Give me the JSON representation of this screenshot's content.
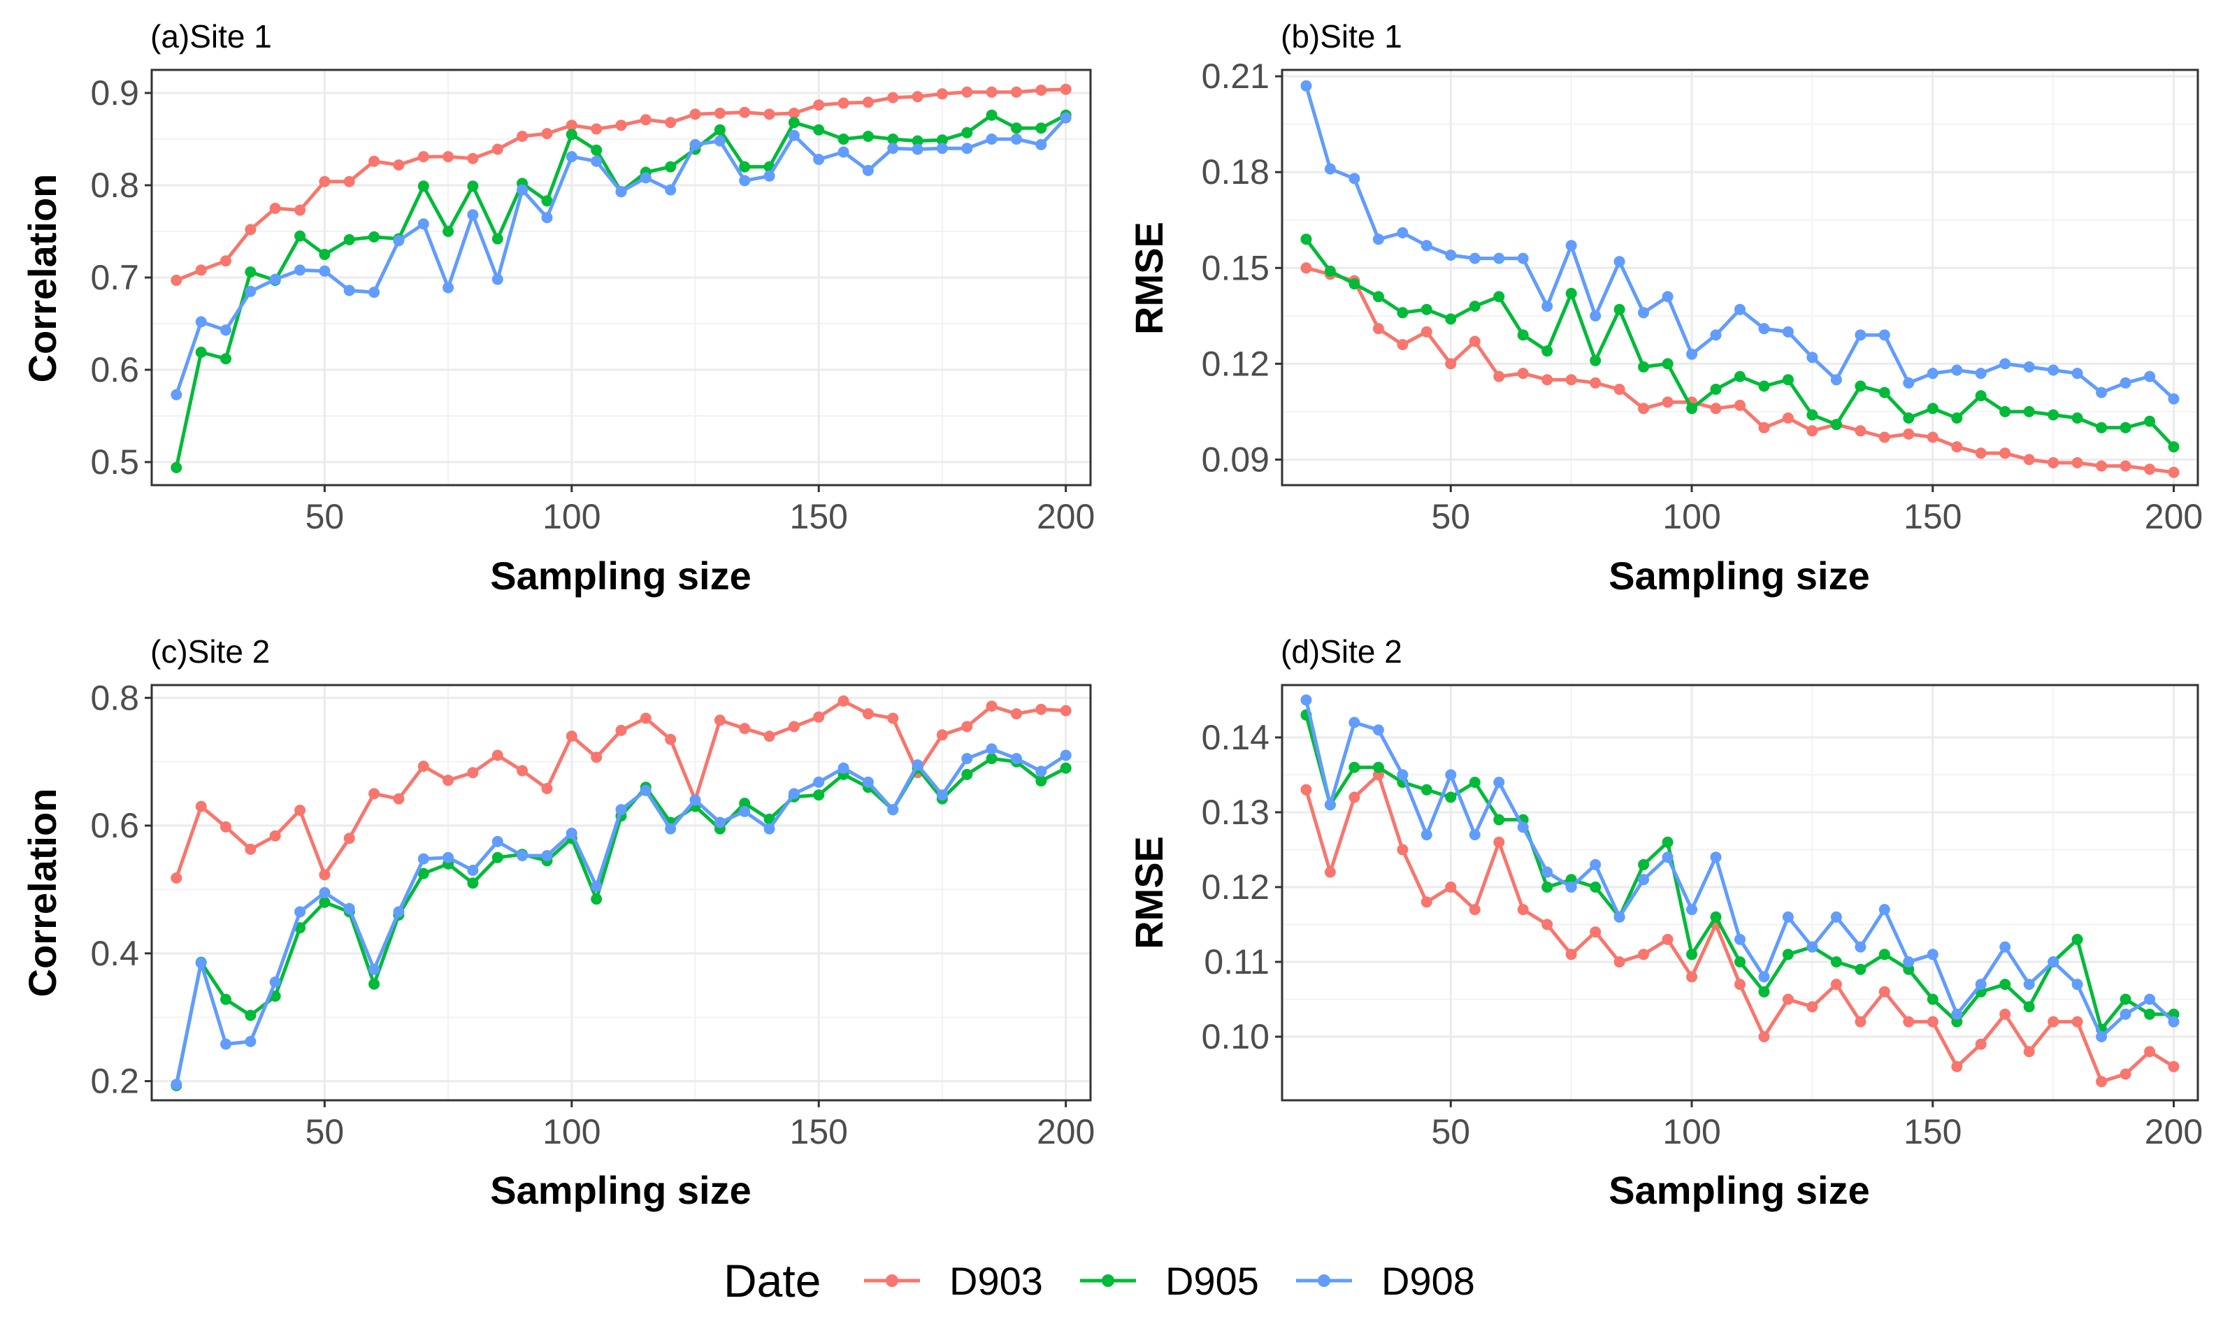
{
  "colors": {
    "D903": "#F8766D",
    "D905": "#00BA38",
    "D908": "#619CFF"
  },
  "legend": {
    "title": "Date",
    "entries": [
      "D903",
      "D905",
      "D908"
    ]
  },
  "chart_data": [
    {
      "type": "line",
      "title": "(a)Site 1",
      "xlabel": "Sampling size",
      "ylabel": "Correlation",
      "xlim": [
        15,
        205
      ],
      "ylim": [
        0.475,
        0.925
      ],
      "xticks": [
        50,
        100,
        150,
        200
      ],
      "yticks": [
        0.5,
        0.6,
        0.7,
        0.8,
        0.9
      ],
      "ytick_labels": [
        "0.5",
        "0.6",
        "0.7",
        "0.8",
        "0.9"
      ],
      "x": [
        20,
        25,
        30,
        35,
        40,
        45,
        50,
        55,
        60,
        65,
        70,
        75,
        80,
        85,
        90,
        95,
        100,
        105,
        110,
        115,
        120,
        125,
        130,
        135,
        140,
        145,
        150,
        155,
        160,
        165,
        170,
        175,
        180,
        185,
        190,
        195,
        200
      ],
      "series": [
        {
          "name": "D903",
          "values": [
            0.697,
            0.708,
            0.718,
            0.752,
            0.775,
            0.773,
            0.804,
            0.804,
            0.826,
            0.822,
            0.831,
            0.831,
            0.829,
            0.839,
            0.853,
            0.856,
            0.865,
            0.861,
            0.865,
            0.871,
            0.868,
            0.877,
            0.878,
            0.879,
            0.877,
            0.878,
            0.887,
            0.889,
            0.89,
            0.895,
            0.896,
            0.899,
            0.901,
            0.901,
            0.901,
            0.903,
            0.904
          ]
        },
        {
          "name": "D905",
          "values": [
            0.494,
            0.619,
            0.612,
            0.706,
            0.697,
            0.745,
            0.725,
            0.741,
            0.744,
            0.742,
            0.799,
            0.75,
            0.799,
            0.742,
            0.802,
            0.783,
            0.855,
            0.838,
            0.793,
            0.814,
            0.82,
            0.839,
            0.86,
            0.82,
            0.82,
            0.868,
            0.86,
            0.85,
            0.853,
            0.85,
            0.848,
            0.849,
            0.857,
            0.876,
            0.862,
            0.862,
            0.876
          ]
        },
        {
          "name": "D908",
          "values": [
            0.573,
            0.652,
            0.643,
            0.685,
            0.698,
            0.708,
            0.707,
            0.686,
            0.684,
            0.74,
            0.758,
            0.689,
            0.768,
            0.698,
            0.795,
            0.765,
            0.831,
            0.826,
            0.793,
            0.808,
            0.795,
            0.844,
            0.848,
            0.805,
            0.81,
            0.854,
            0.828,
            0.836,
            0.816,
            0.84,
            0.839,
            0.84,
            0.84,
            0.85,
            0.85,
            0.844,
            0.873
          ]
        }
      ]
    },
    {
      "type": "line",
      "title": "(b)Site 1",
      "xlabel": "Sampling size",
      "ylabel": "RMSE",
      "xlim": [
        15,
        205
      ],
      "ylim": [
        0.082,
        0.212
      ],
      "xticks": [
        50,
        100,
        150,
        200
      ],
      "yticks": [
        0.09,
        0.12,
        0.15,
        0.18,
        0.21
      ],
      "ytick_labels": [
        "0.09",
        "0.12",
        "0.15",
        "0.18",
        "0.21"
      ],
      "x": [
        20,
        25,
        30,
        35,
        40,
        45,
        50,
        55,
        60,
        65,
        70,
        75,
        80,
        85,
        90,
        95,
        100,
        105,
        110,
        115,
        120,
        125,
        130,
        135,
        140,
        145,
        150,
        155,
        160,
        165,
        170,
        175,
        180,
        185,
        190,
        195,
        200
      ],
      "series": [
        {
          "name": "D903",
          "values": [
            0.15,
            0.148,
            0.146,
            0.131,
            0.126,
            0.13,
            0.12,
            0.127,
            0.116,
            0.117,
            0.115,
            0.115,
            0.114,
            0.112,
            0.106,
            0.108,
            0.108,
            0.106,
            0.107,
            0.1,
            0.103,
            0.099,
            0.101,
            0.099,
            0.097,
            0.098,
            0.097,
            0.094,
            0.092,
            0.092,
            0.09,
            0.089,
            0.089,
            0.088,
            0.088,
            0.087,
            0.086
          ]
        },
        {
          "name": "D905",
          "values": [
            0.159,
            0.149,
            0.145,
            0.141,
            0.136,
            0.137,
            0.134,
            0.138,
            0.141,
            0.129,
            0.124,
            0.142,
            0.121,
            0.137,
            0.119,
            0.12,
            0.106,
            0.112,
            0.116,
            0.113,
            0.115,
            0.104,
            0.101,
            0.113,
            0.111,
            0.103,
            0.106,
            0.103,
            0.11,
            0.105,
            0.105,
            0.104,
            0.103,
            0.1,
            0.1,
            0.102,
            0.094
          ]
        },
        {
          "name": "D908",
          "values": [
            0.207,
            0.181,
            0.178,
            0.159,
            0.161,
            0.157,
            0.154,
            0.153,
            0.153,
            0.153,
            0.138,
            0.157,
            0.135,
            0.152,
            0.136,
            0.141,
            0.123,
            0.129,
            0.137,
            0.131,
            0.13,
            0.122,
            0.115,
            0.129,
            0.129,
            0.114,
            0.117,
            0.118,
            0.117,
            0.12,
            0.119,
            0.118,
            0.117,
            0.111,
            0.114,
            0.116,
            0.109
          ]
        }
      ]
    },
    {
      "type": "line",
      "title": "(c)Site 2",
      "xlabel": "Sampling size",
      "ylabel": "Correlation",
      "xlim": [
        15,
        205
      ],
      "ylim": [
        0.17,
        0.82
      ],
      "xticks": [
        50,
        100,
        150,
        200
      ],
      "yticks": [
        0.2,
        0.4,
        0.6,
        0.8
      ],
      "ytick_labels": [
        "0.2",
        "0.4",
        "0.6",
        "0.8"
      ],
      "x": [
        20,
        25,
        30,
        35,
        40,
        45,
        50,
        55,
        60,
        65,
        70,
        75,
        80,
        85,
        90,
        95,
        100,
        105,
        110,
        115,
        120,
        125,
        130,
        135,
        140,
        145,
        150,
        155,
        160,
        165,
        170,
        175,
        180,
        185,
        190,
        195,
        200
      ],
      "series": [
        {
          "name": "D903",
          "values": [
            0.518,
            0.63,
            0.598,
            0.563,
            0.584,
            0.624,
            0.523,
            0.58,
            0.65,
            0.642,
            0.693,
            0.671,
            0.683,
            0.71,
            0.686,
            0.658,
            0.74,
            0.707,
            0.749,
            0.768,
            0.735,
            0.64,
            0.765,
            0.752,
            0.74,
            0.755,
            0.77,
            0.795,
            0.775,
            0.768,
            0.683,
            0.742,
            0.755,
            0.787,
            0.775,
            0.782,
            0.78
          ]
        },
        {
          "name": "D905",
          "values": [
            0.193,
            0.386,
            0.328,
            0.303,
            0.333,
            0.44,
            0.48,
            0.465,
            0.352,
            0.46,
            0.525,
            0.54,
            0.51,
            0.55,
            0.555,
            0.545,
            0.58,
            0.485,
            0.615,
            0.66,
            0.605,
            0.63,
            0.595,
            0.635,
            0.61,
            0.645,
            0.648,
            0.68,
            0.66,
            0.625,
            0.69,
            0.642,
            0.68,
            0.705,
            0.7,
            0.67,
            0.69
          ]
        },
        {
          "name": "D908",
          "values": [
            0.195,
            0.385,
            0.258,
            0.262,
            0.355,
            0.465,
            0.495,
            0.47,
            0.375,
            0.465,
            0.548,
            0.55,
            0.53,
            0.575,
            0.553,
            0.553,
            0.588,
            0.505,
            0.625,
            0.655,
            0.595,
            0.64,
            0.605,
            0.622,
            0.595,
            0.65,
            0.668,
            0.69,
            0.668,
            0.625,
            0.695,
            0.648,
            0.705,
            0.72,
            0.705,
            0.685,
            0.71
          ]
        }
      ]
    },
    {
      "type": "line",
      "title": "(d)Site 2",
      "xlabel": "Sampling size",
      "ylabel": "RMSE",
      "xlim": [
        15,
        205
      ],
      "ylim": [
        0.0915,
        0.147
      ],
      "xticks": [
        50,
        100,
        150,
        200
      ],
      "yticks": [
        0.1,
        0.11,
        0.12,
        0.13,
        0.14
      ],
      "ytick_labels": [
        "0.10",
        "0.11",
        "0.12",
        "0.13",
        "0.14"
      ],
      "x": [
        20,
        25,
        30,
        35,
        40,
        45,
        50,
        55,
        60,
        65,
        70,
        75,
        80,
        85,
        90,
        95,
        100,
        105,
        110,
        115,
        120,
        125,
        130,
        135,
        140,
        145,
        150,
        155,
        160,
        165,
        170,
        175,
        180,
        185,
        190,
        195,
        200
      ],
      "series": [
        {
          "name": "D903",
          "values": [
            0.133,
            0.122,
            0.132,
            0.135,
            0.125,
            0.118,
            0.12,
            0.117,
            0.126,
            0.117,
            0.115,
            0.111,
            0.114,
            0.11,
            0.111,
            0.113,
            0.108,
            0.115,
            0.107,
            0.1,
            0.105,
            0.104,
            0.107,
            0.102,
            0.106,
            0.102,
            0.102,
            0.096,
            0.099,
            0.103,
            0.098,
            0.102,
            0.102,
            0.094,
            0.095,
            0.098,
            0.096
          ]
        },
        {
          "name": "D905",
          "values": [
            0.143,
            0.131,
            0.136,
            0.136,
            0.134,
            0.133,
            0.132,
            0.134,
            0.129,
            0.129,
            0.12,
            0.121,
            0.12,
            0.116,
            0.123,
            0.126,
            0.111,
            0.116,
            0.11,
            0.106,
            0.111,
            0.112,
            0.11,
            0.109,
            0.111,
            0.109,
            0.105,
            0.102,
            0.106,
            0.107,
            0.104,
            0.11,
            0.113,
            0.101,
            0.105,
            0.103,
            0.103
          ]
        },
        {
          "name": "D908",
          "values": [
            0.145,
            0.131,
            0.142,
            0.141,
            0.135,
            0.127,
            0.135,
            0.127,
            0.134,
            0.128,
            0.122,
            0.12,
            0.123,
            0.116,
            0.121,
            0.124,
            0.117,
            0.124,
            0.113,
            0.108,
            0.116,
            0.112,
            0.116,
            0.112,
            0.117,
            0.11,
            0.111,
            0.103,
            0.107,
            0.112,
            0.107,
            0.11,
            0.107,
            0.1,
            0.103,
            0.105,
            0.102
          ]
        }
      ]
    }
  ]
}
